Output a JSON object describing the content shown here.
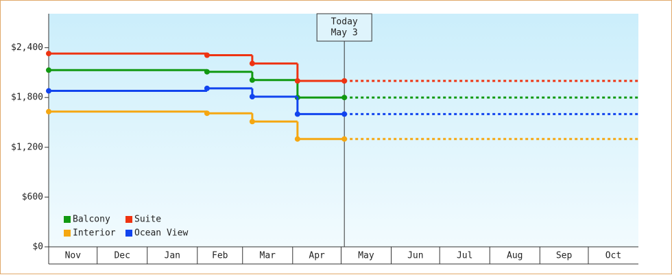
{
  "chart_data": {
    "type": "step-line",
    "x": [
      0,
      98,
      126,
      154,
      183
    ],
    "xlim": [
      0,
      365
    ],
    "xticks": [
      {
        "value": 0,
        "label": "Nov"
      },
      {
        "value": 30,
        "label": "Dec"
      },
      {
        "value": 61,
        "label": "Jan"
      },
      {
        "value": 92,
        "label": "Feb"
      },
      {
        "value": 120,
        "label": "Mar"
      },
      {
        "value": 151,
        "label": "Apr"
      },
      {
        "value": 181,
        "label": "May"
      },
      {
        "value": 212,
        "label": "Jun"
      },
      {
        "value": 242,
        "label": "Jul"
      },
      {
        "value": 273,
        "label": "Aug"
      },
      {
        "value": 304,
        "label": "Sep"
      },
      {
        "value": 334,
        "label": "Oct"
      }
    ],
    "ylim": [
      0,
      2810
    ],
    "yticks": [
      {
        "value": 0,
        "label": "$0"
      },
      {
        "value": 600,
        "label": "$600"
      },
      {
        "value": 1200,
        "label": "$1,200"
      },
      {
        "value": 1800,
        "label": "$1,800"
      },
      {
        "value": 2400,
        "label": "$2,400"
      }
    ],
    "series": [
      {
        "name": "Balcony",
        "color": "#119911",
        "values": [
          2130,
          2110,
          2010,
          1800,
          1800
        ]
      },
      {
        "name": "Suite",
        "color": "#ee3311",
        "values": [
          2330,
          2310,
          2210,
          2000,
          2000
        ]
      },
      {
        "name": "Interior",
        "color": "#f5a711",
        "values": [
          1630,
          1610,
          1510,
          1300,
          1300
        ]
      },
      {
        "name": "Ocean View",
        "color": "#1144ee",
        "values": [
          1880,
          1910,
          1810,
          1600,
          1600
        ]
      }
    ],
    "annotation": {
      "x": 183,
      "label": [
        "Today",
        "May 3"
      ]
    },
    "legend": "lower-left"
  }
}
